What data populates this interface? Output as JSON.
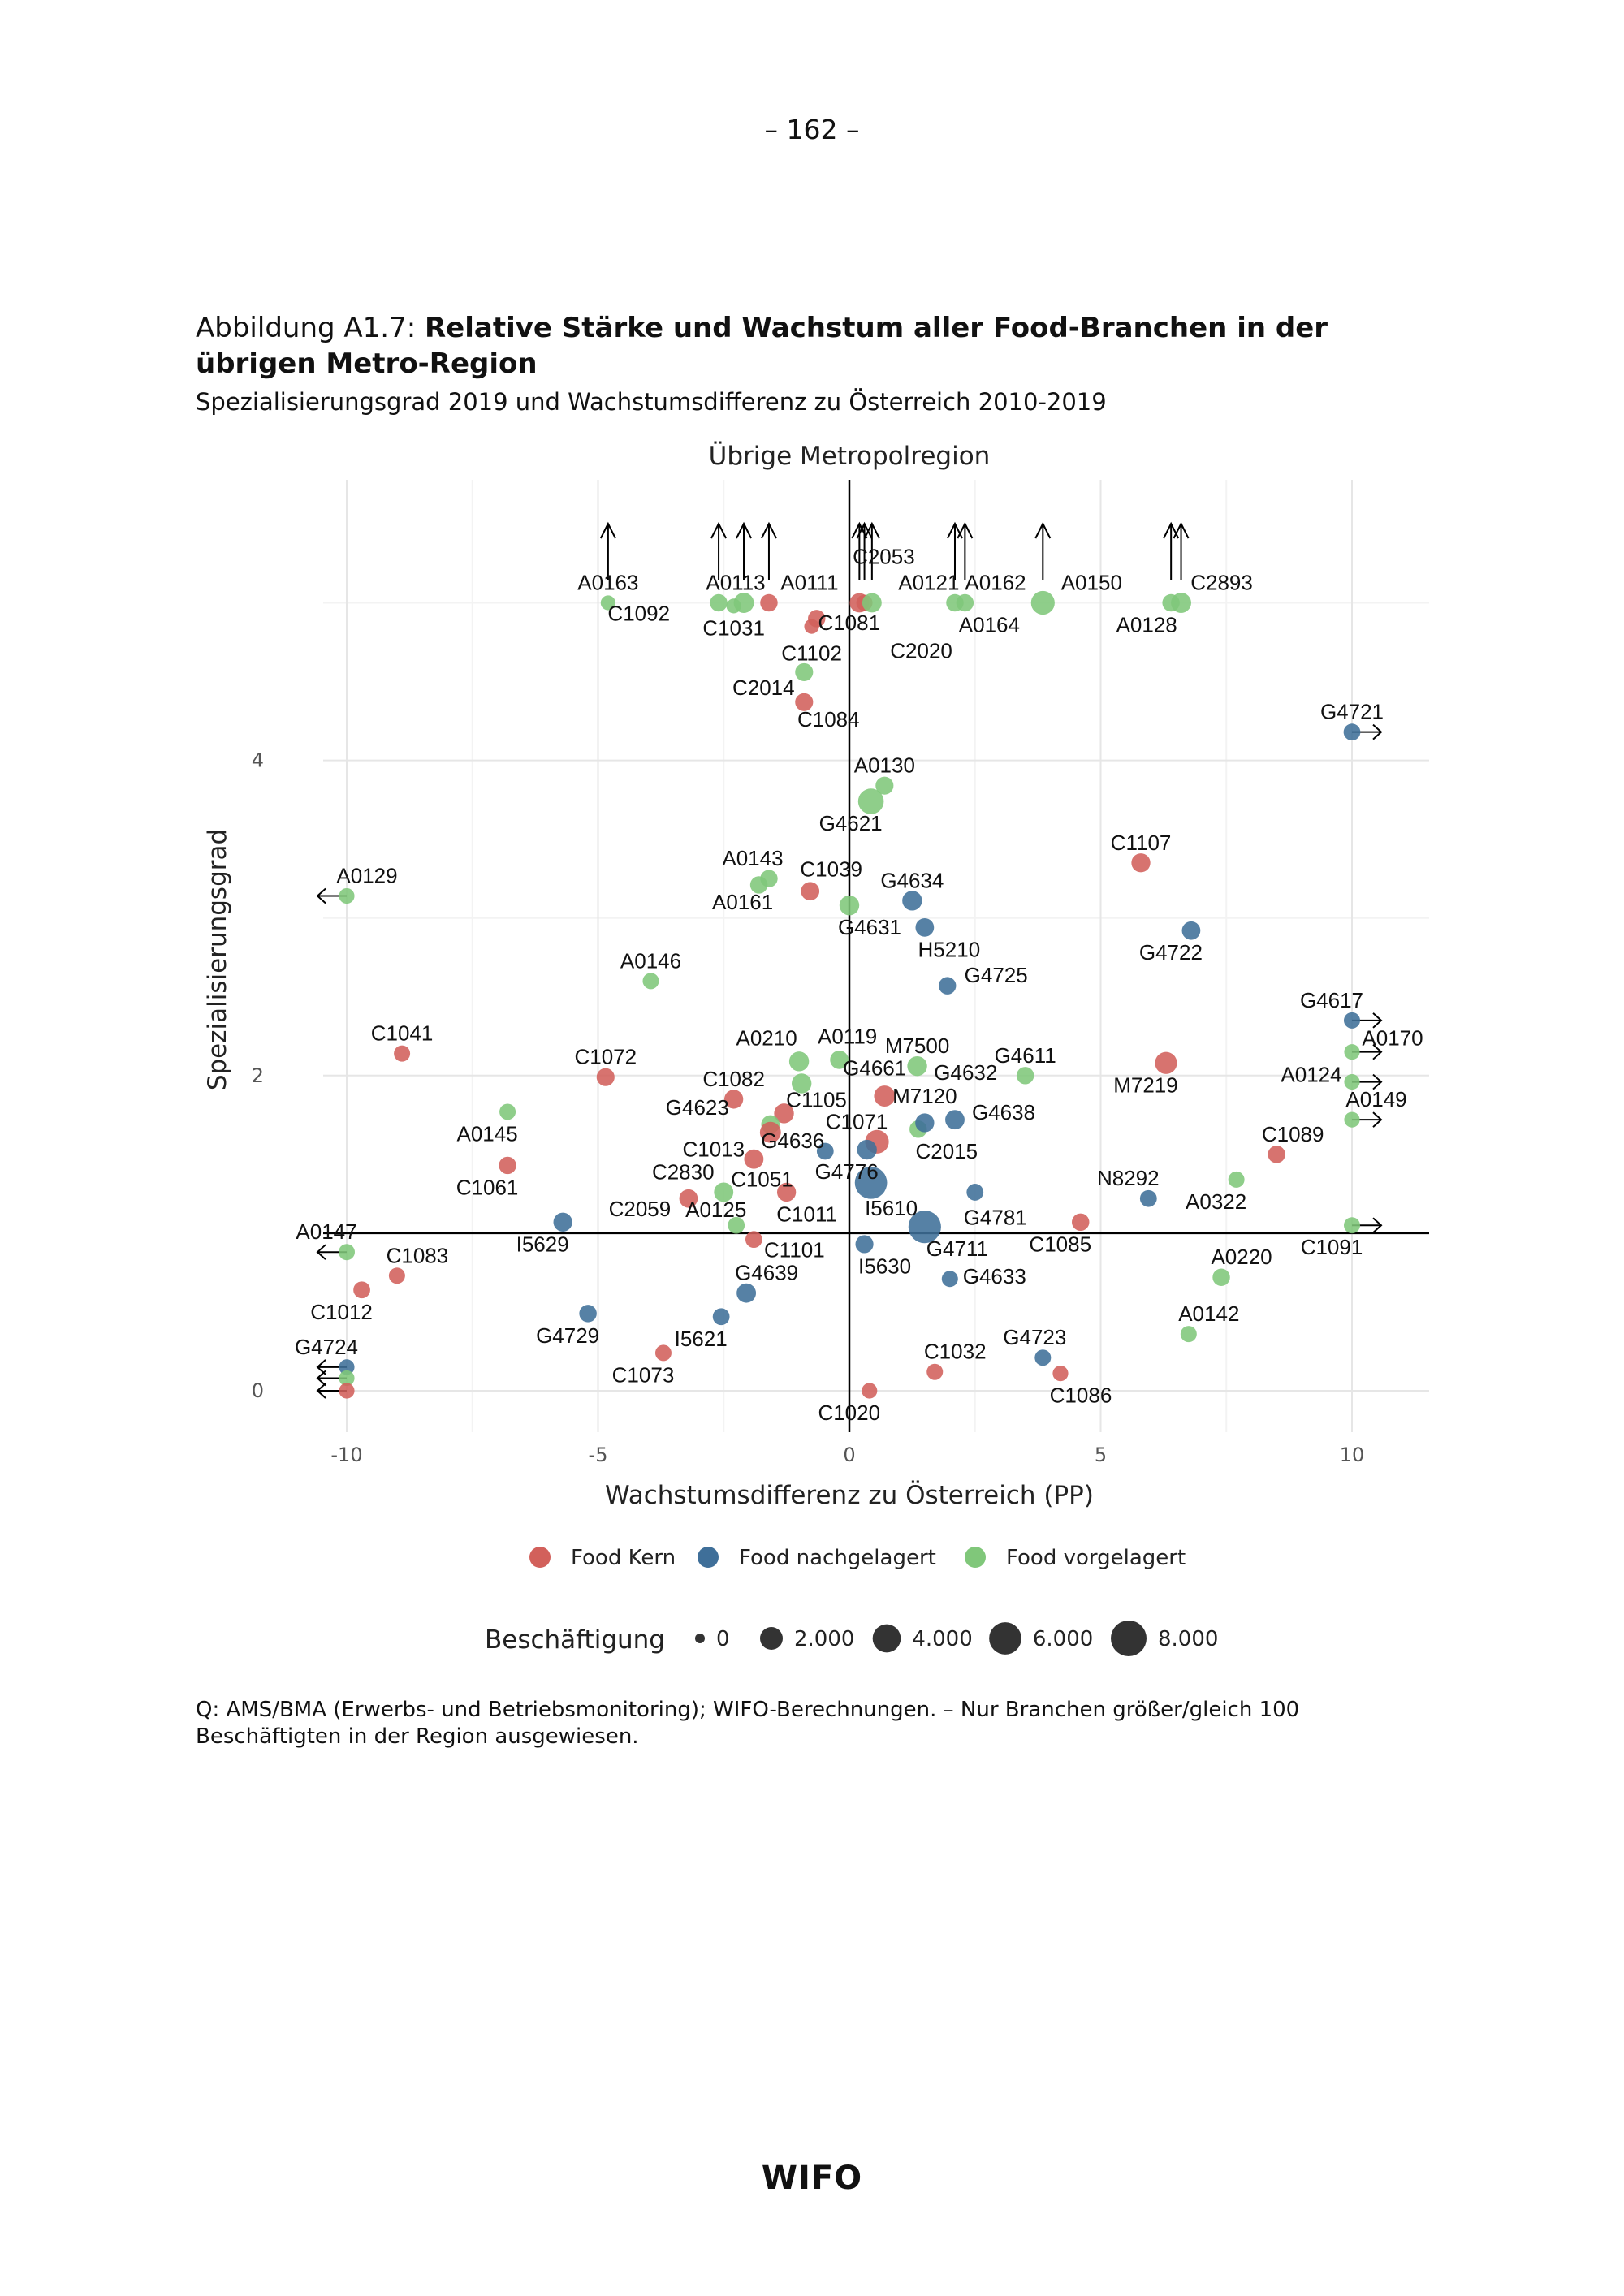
{
  "page_number": "– 162 –",
  "figure": {
    "prefix": "Abbildung A1.7: ",
    "title_bold": "Relative Stärke und Wachstum aller Food-Branchen in der übrigen Metro-Region",
    "subtitle": "Spezialisierungsgrad 2019 und Wachstumsdifferenz zu Österreich 2010-2019"
  },
  "footnote": "Q: AMS/BMA (Erwerbs- und Betriebsmonitoring); WIFO-Berechnungen. – Nur Branchen größer/gleich 100 Beschäftigten in der Region ausgewiesen.",
  "logo": "WIFO",
  "chart_data": {
    "type": "scatter",
    "title": "Übrige Metropolregion",
    "xlabel": "Wachstumsdifferenz zu Österreich (PP)",
    "ylabel": "Spezialisierungsgrad",
    "xlim": [
      -11.5,
      11.5
    ],
    "ylim": [
      -0.3,
      5.75
    ],
    "xticks": [
      -10,
      -5,
      0,
      5,
      10
    ],
    "yticks": [
      0,
      2,
      4
    ],
    "reference_lines": {
      "x": 0,
      "y": 1
    },
    "grid": true,
    "colors": {
      "Food Kern": "#D2605B",
      "Food nachgelagert": "#3F6F99",
      "Food vorgelagert": "#80C77A"
    },
    "legend": {
      "placement": "bottom",
      "categories": [
        "Food Kern",
        "Food nachgelagert",
        "Food vorgelagert"
      ],
      "size_title": "Beschäftigung",
      "size_values": [
        0,
        2000,
        4000,
        6000,
        8000
      ],
      "size_labels": [
        "0",
        "2.000",
        "4.000",
        "6.000",
        "8.000"
      ]
    },
    "points": [
      {
        "label": "A0163",
        "cat": "Food vorgelagert",
        "x": -4.8,
        "y": 5,
        "emp": 300,
        "capped": "up"
      },
      {
        "label": "C1092",
        "cat": "Food vorgelagert",
        "x": -2.6,
        "y": 5,
        "emp": 700,
        "capped": "up"
      },
      {
        "label": "A0113",
        "cat": "Food vorgelagert",
        "x": -2.1,
        "y": 5,
        "emp": 1300,
        "capped": "up"
      },
      {
        "label": "C1031",
        "cat": "Food vorgelagert",
        "x": -2.3,
        "y": 4.98,
        "emp": 300,
        "capped": ""
      },
      {
        "label": "A0111",
        "cat": "Food Kern",
        "x": -1.6,
        "y": 5,
        "emp": 700,
        "capped": "up"
      },
      {
        "label": "C1081",
        "cat": "Food Kern",
        "x": -0.65,
        "y": 4.9,
        "emp": 700,
        "capped": ""
      },
      {
        "label": "C2053",
        "cat": "Food Kern",
        "x": 0.2,
        "y": 5,
        "emp": 1100,
        "capped": "up"
      },
      {
        "label": "C2020",
        "cat": "Food Kern",
        "x": 0.3,
        "y": 5,
        "emp": 500,
        "capped": "up"
      },
      {
        "label": "A0121",
        "cat": "Food vorgelagert",
        "x": 0.45,
        "y": 5,
        "emp": 1100,
        "capped": "up"
      },
      {
        "label": "A0162",
        "cat": "Food vorgelagert",
        "x": 2.1,
        "y": 5,
        "emp": 700,
        "capped": "up"
      },
      {
        "label": "A0164",
        "cat": "Food vorgelagert",
        "x": 2.3,
        "y": 5,
        "emp": 700,
        "capped": "up"
      },
      {
        "label": "A0150",
        "cat": "Food vorgelagert",
        "x": 3.85,
        "y": 5,
        "emp": 2300,
        "capped": "up"
      },
      {
        "label": "A0128",
        "cat": "Food vorgelagert",
        "x": 6.4,
        "y": 5,
        "emp": 700,
        "capped": "up"
      },
      {
        "label": "C2893",
        "cat": "Food vorgelagert",
        "x": 6.6,
        "y": 5,
        "emp": 1300,
        "capped": "up"
      },
      {
        "label": "C1102",
        "cat": "Food Kern",
        "x": -0.75,
        "y": 4.85,
        "emp": 300,
        "capped": ""
      },
      {
        "label": "C2014",
        "cat": "Food vorgelagert",
        "x": -0.9,
        "y": 4.56,
        "emp": 800,
        "capped": ""
      },
      {
        "label": "C1084",
        "cat": "Food Kern",
        "x": -0.9,
        "y": 4.37,
        "emp": 800,
        "capped": ""
      },
      {
        "label": "G4721",
        "cat": "Food nachgelagert",
        "x": 10,
        "y": 4.18,
        "emp": 600,
        "capped": "right"
      },
      {
        "label": "A0130",
        "cat": "Food vorgelagert",
        "x": 0.7,
        "y": 3.84,
        "emp": 800,
        "capped": ""
      },
      {
        "label": "G4621",
        "cat": "Food vorgelagert",
        "x": 0.43,
        "y": 3.74,
        "emp": 3000,
        "capped": ""
      },
      {
        "label": "C1107",
        "cat": "Food Kern",
        "x": 5.8,
        "y": 3.35,
        "emp": 1000,
        "capped": ""
      },
      {
        "label": "A0129",
        "cat": "Food vorgelagert",
        "x": -10,
        "y": 3.14,
        "emp": 400,
        "capped": "left"
      },
      {
        "label": "A0143",
        "cat": "Food vorgelagert",
        "x": -1.6,
        "y": 3.25,
        "emp": 700,
        "capped": ""
      },
      {
        "label": "A0161",
        "cat": "Food vorgelagert",
        "x": -1.8,
        "y": 3.21,
        "emp": 700,
        "capped": ""
      },
      {
        "label": "C1039",
        "cat": "Food Kern",
        "x": -0.78,
        "y": 3.17,
        "emp": 900,
        "capped": ""
      },
      {
        "label": "G4634",
        "cat": "Food nachgelagert",
        "x": 1.25,
        "y": 3.11,
        "emp": 1200,
        "capped": ""
      },
      {
        "label": "G4631",
        "cat": "Food vorgelagert",
        "x": 0,
        "y": 3.08,
        "emp": 1200,
        "capped": ""
      },
      {
        "label": "H5210",
        "cat": "Food nachgelagert",
        "x": 1.5,
        "y": 2.94,
        "emp": 900,
        "capped": ""
      },
      {
        "label": "G4722",
        "cat": "Food nachgelagert",
        "x": 6.8,
        "y": 2.92,
        "emp": 900,
        "capped": ""
      },
      {
        "label": "A0146",
        "cat": "Food vorgelagert",
        "x": -3.95,
        "y": 2.6,
        "emp": 500,
        "capped": ""
      },
      {
        "label": "G4725",
        "cat": "Food nachgelagert",
        "x": 1.95,
        "y": 2.57,
        "emp": 700,
        "capped": ""
      },
      {
        "label": "G4617",
        "cat": "Food nachgelagert",
        "x": 10,
        "y": 2.35,
        "emp": 500,
        "capped": "right"
      },
      {
        "label": "A0170",
        "cat": "Food vorgelagert",
        "x": 10,
        "y": 2.15,
        "emp": 400,
        "capped": "right"
      },
      {
        "label": "C1041",
        "cat": "Food Kern",
        "x": -8.9,
        "y": 2.14,
        "emp": 500,
        "capped": ""
      },
      {
        "label": "A0124",
        "cat": "Food vorgelagert",
        "x": 10,
        "y": 1.96,
        "emp": 400,
        "capped": "right"
      },
      {
        "label": "A0149",
        "cat": "Food vorgelagert",
        "x": 10,
        "y": 1.72,
        "emp": 400,
        "capped": "right"
      },
      {
        "label": "C1072",
        "cat": "Food Kern",
        "x": -4.85,
        "y": 1.99,
        "emp": 800,
        "capped": ""
      },
      {
        "label": "A0210",
        "cat": "Food vorgelagert",
        "x": -1.0,
        "y": 2.09,
        "emp": 1200,
        "capped": ""
      },
      {
        "label": "A0119",
        "cat": "Food vorgelagert",
        "x": -0.2,
        "y": 2.1,
        "emp": 900,
        "capped": ""
      },
      {
        "label": "M7500",
        "cat": "Food vorgelagert",
        "x": 1.35,
        "y": 2.06,
        "emp": 1200,
        "capped": ""
      },
      {
        "label": "G4611",
        "cat": "Food vorgelagert",
        "x": 3.5,
        "y": 2.0,
        "emp": 700,
        "capped": ""
      },
      {
        "label": "M7219",
        "cat": "Food Kern",
        "x": 6.3,
        "y": 2.08,
        "emp": 1800,
        "capped": ""
      },
      {
        "label": "G4661",
        "cat": "Food vorgelagert",
        "x": -0.95,
        "y": 1.95,
        "emp": 1200,
        "capped": ""
      },
      {
        "label": "C1082",
        "cat": "Food Kern",
        "x": -2.3,
        "y": 1.85,
        "emp": 1000,
        "capped": ""
      },
      {
        "label": "G4632",
        "cat": "Food Kern",
        "x": 0.7,
        "y": 1.87,
        "emp": 1500,
        "capped": ""
      },
      {
        "label": "C1105",
        "cat": "Food Kern",
        "x": -1.3,
        "y": 1.76,
        "emp": 1200,
        "capped": ""
      },
      {
        "label": "G4623",
        "cat": "Food vorgelagert",
        "x": -1.57,
        "y": 1.69,
        "emp": 900,
        "capped": ""
      },
      {
        "label": "C1013",
        "cat": "Food Kern",
        "x": -1.57,
        "y": 1.64,
        "emp": 1500,
        "capped": ""
      },
      {
        "label": "G4638",
        "cat": "Food nachgelagert",
        "x": 2.1,
        "y": 1.72,
        "emp": 1100,
        "capped": ""
      },
      {
        "label": "C2015",
        "cat": "Food vorgelagert",
        "x": 1.37,
        "y": 1.66,
        "emp": 700,
        "capped": ""
      },
      {
        "label": "M7120",
        "cat": "Food nachgelagert",
        "x": 1.5,
        "y": 1.7,
        "emp": 1000,
        "capped": ""
      },
      {
        "label": "A0145",
        "cat": "Food vorgelagert",
        "x": -6.8,
        "y": 1.77,
        "emp": 500,
        "capped": ""
      },
      {
        "label": "C1071",
        "cat": "Food Kern",
        "x": 0.55,
        "y": 1.58,
        "emp": 2300,
        "capped": ""
      },
      {
        "label": "G4636",
        "cat": "Food nachgelagert",
        "x": -0.48,
        "y": 1.52,
        "emp": 600,
        "capped": ""
      },
      {
        "label": "G4776",
        "cat": "Food nachgelagert",
        "x": 0.35,
        "y": 1.53,
        "emp": 1200,
        "capped": ""
      },
      {
        "label": "C1089",
        "cat": "Food Kern",
        "x": 8.5,
        "y": 1.5,
        "emp": 700,
        "capped": ""
      },
      {
        "label": "C1061",
        "cat": "Food Kern",
        "x": -6.8,
        "y": 1.43,
        "emp": 700,
        "capped": ""
      },
      {
        "label": "C1051",
        "cat": "Food Kern",
        "x": -1.9,
        "y": 1.47,
        "emp": 1100,
        "capped": ""
      },
      {
        "label": "I5610",
        "cat": "Food nachgelagert",
        "x": 0.43,
        "y": 1.32,
        "emp": 6000,
        "capped": ""
      },
      {
        "label": "G4781",
        "cat": "Food nachgelagert",
        "x": 2.5,
        "y": 1.26,
        "emp": 600,
        "capped": ""
      },
      {
        "label": "A0322",
        "cat": "Food vorgelagert",
        "x": 7.7,
        "y": 1.34,
        "emp": 500,
        "capped": ""
      },
      {
        "label": "N8292",
        "cat": "Food nachgelagert",
        "x": 5.95,
        "y": 1.22,
        "emp": 600,
        "capped": ""
      },
      {
        "label": "C2830",
        "cat": "Food vorgelagert",
        "x": -2.5,
        "y": 1.26,
        "emp": 1100,
        "capped": ""
      },
      {
        "label": "C2059",
        "cat": "Food Kern",
        "x": -3.2,
        "y": 1.22,
        "emp": 900,
        "capped": ""
      },
      {
        "label": "C1011",
        "cat": "Food Kern",
        "x": -1.25,
        "y": 1.26,
        "emp": 1000,
        "capped": ""
      },
      {
        "label": "A0125",
        "cat": "Food vorgelagert",
        "x": -2.25,
        "y": 1.05,
        "emp": 600,
        "capped": ""
      },
      {
        "label": "C1091",
        "cat": "Food vorgelagert",
        "x": 10,
        "y": 1.05,
        "emp": 500,
        "capped": "right"
      },
      {
        "label": "C1085",
        "cat": "Food Kern",
        "x": 4.6,
        "y": 1.07,
        "emp": 700,
        "capped": ""
      },
      {
        "label": "G4711",
        "cat": "Food nachgelagert",
        "x": 1.5,
        "y": 1.04,
        "emp": 6200,
        "capped": ""
      },
      {
        "label": "I5629",
        "cat": "Food nachgelagert",
        "x": -5.7,
        "y": 1.07,
        "emp": 1000,
        "capped": ""
      },
      {
        "label": "C1101",
        "cat": "Food Kern",
        "x": -1.9,
        "y": 0.96,
        "emp": 600,
        "capped": ""
      },
      {
        "label": "A0147",
        "cat": "Food vorgelagert",
        "x": -10,
        "y": 0.88,
        "emp": 500,
        "capped": "left"
      },
      {
        "label": "I5630",
        "cat": "Food nachgelagert",
        "x": 0.3,
        "y": 0.93,
        "emp": 800,
        "capped": ""
      },
      {
        "label": "C1083",
        "cat": "Food Kern",
        "x": -9.0,
        "y": 0.73,
        "emp": 500,
        "capped": ""
      },
      {
        "label": "G4633",
        "cat": "Food nachgelagert",
        "x": 2.0,
        "y": 0.71,
        "emp": 500,
        "capped": ""
      },
      {
        "label": "A0220",
        "cat": "Food vorgelagert",
        "x": 7.4,
        "y": 0.72,
        "emp": 700,
        "capped": ""
      },
      {
        "label": "G4639",
        "cat": "Food nachgelagert",
        "x": -2.05,
        "y": 0.62,
        "emp": 1100,
        "capped": ""
      },
      {
        "label": "C1012",
        "cat": "Food Kern",
        "x": -9.7,
        "y": 0.64,
        "emp": 600,
        "capped": ""
      },
      {
        "label": "G4729",
        "cat": "Food nachgelagert",
        "x": -5.2,
        "y": 0.49,
        "emp": 700,
        "capped": ""
      },
      {
        "label": "I5621",
        "cat": "Food nachgelagert",
        "x": -2.55,
        "y": 0.47,
        "emp": 600,
        "capped": ""
      },
      {
        "label": "A0142",
        "cat": "Food vorgelagert",
        "x": 6.75,
        "y": 0.36,
        "emp": 500,
        "capped": ""
      },
      {
        "label": "C1073",
        "cat": "Food Kern",
        "x": -3.7,
        "y": 0.24,
        "emp": 500,
        "capped": ""
      },
      {
        "label": "C1032",
        "cat": "Food Kern",
        "x": 1.7,
        "y": 0.12,
        "emp": 500,
        "capped": ""
      },
      {
        "label": "G4723",
        "cat": "Food nachgelagert",
        "x": 3.85,
        "y": 0.21,
        "emp": 500,
        "capped": ""
      },
      {
        "label": "C1086",
        "cat": "Food Kern",
        "x": 4.2,
        "y": 0.11,
        "emp": 400,
        "capped": ""
      },
      {
        "label": "C1020",
        "cat": "Food Kern",
        "x": 0.4,
        "y": 0,
        "emp": 400,
        "capped": ""
      },
      {
        "label": "G4724",
        "cat": "Food nachgelagert",
        "x": -10,
        "y": 0.15,
        "emp": 400,
        "capped": "left"
      },
      {
        "label": "",
        "cat": "Food vorgelagert",
        "x": -10,
        "y": 0.08,
        "emp": 400,
        "capped": "left"
      },
      {
        "label": "",
        "cat": "Food Kern",
        "x": -10,
        "y": 0,
        "emp": 400,
        "capped": "left"
      }
    ]
  }
}
